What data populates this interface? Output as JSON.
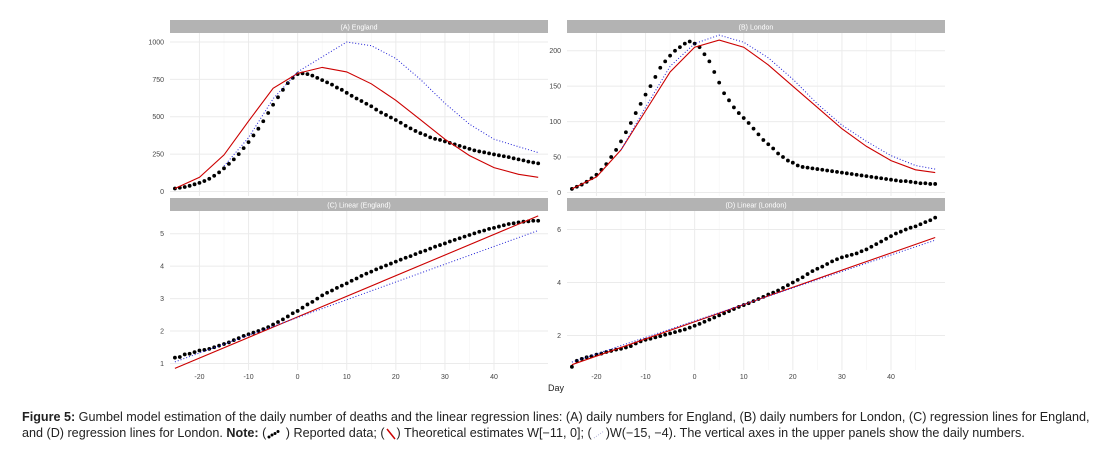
{
  "caption": {
    "fig_label": "Figure 5:",
    "text1": " Gumbel model estimation of the daily number of deaths and the linear regression lines: (A) daily numbers for England, (B) daily numbers  for London, (C) regression lines for England, and (D) regression lines for London. ",
    "note_label": "Note:",
    "t_open1": " (",
    "t_reported": " ) Reported data; (",
    "t_theoretical": ") Theoretical estimates W[−11, 0]; (",
    "t_w2": ")W(−15, −4). The vertical axes in the upper panels show the daily numbers."
  },
  "colors": {
    "points": "#000000",
    "fit_line": "#cc0000",
    "dotted_line": "#1f1fd6",
    "strip": "#b3b3b3"
  },
  "chart_data": [
    {
      "type": "scatter",
      "panel": "A",
      "title": "(A) England",
      "xlabel": "",
      "ylabel": "",
      "xlim": [
        -26,
        51
      ],
      "ylim": [
        -30,
        1060
      ],
      "yticks": [
        0,
        250,
        500,
        750,
        1000
      ],
      "xticks": [],
      "series": [
        {
          "kind": "points",
          "x": [
            -25,
            -24,
            -23,
            -22,
            -21,
            -20,
            -19,
            -18,
            -17,
            -16,
            -15,
            -14,
            -13,
            -12,
            -11,
            -10,
            -9,
            -8,
            -7,
            -6,
            -5,
            -4,
            -3,
            -2,
            -1,
            0,
            1,
            2,
            3,
            4,
            5,
            6,
            7,
            8,
            9,
            10,
            11,
            12,
            13,
            14,
            15,
            16,
            17,
            18,
            19,
            20,
            21,
            22,
            23,
            24,
            25,
            26,
            27,
            28,
            29,
            30,
            31,
            32,
            33,
            34,
            35,
            36,
            37,
            38,
            39,
            40,
            41,
            42,
            43,
            44,
            45,
            46,
            47,
            48,
            49
          ],
          "y": [
            20,
            25,
            30,
            38,
            48,
            58,
            70,
            85,
            105,
            128,
            155,
            185,
            215,
            250,
            290,
            330,
            375,
            420,
            470,
            525,
            580,
            630,
            680,
            725,
            760,
            785,
            790,
            785,
            775,
            760,
            745,
            730,
            715,
            695,
            680,
            660,
            640,
            622,
            605,
            587,
            570,
            548,
            528,
            512,
            495,
            478,
            460,
            440,
            422,
            405,
            390,
            378,
            362,
            352,
            345,
            335,
            325,
            315,
            305,
            295,
            285,
            275,
            268,
            262,
            255,
            248,
            242,
            236,
            230,
            222,
            215,
            208,
            200,
            194,
            188
          ]
        },
        {
          "kind": "line",
          "x": [
            -25,
            -20,
            -15,
            -10,
            -5,
            0,
            5,
            10,
            15,
            20,
            25,
            30,
            35,
            40,
            45,
            49
          ],
          "y": [
            20,
            95,
            245,
            470,
            690,
            790,
            830,
            800,
            720,
            610,
            480,
            350,
            240,
            160,
            115,
            95
          ]
        },
        {
          "kind": "dotted",
          "x": [
            -15,
            -10,
            -5,
            0,
            5,
            10,
            15,
            20,
            25,
            30,
            35,
            40,
            45,
            49
          ],
          "y": [
            170,
            360,
            620,
            800,
            900,
            1000,
            975,
            890,
            750,
            590,
            450,
            350,
            300,
            260
          ]
        }
      ]
    },
    {
      "type": "scatter",
      "panel": "B",
      "title": "(B) London",
      "xlabel": "",
      "ylabel": "",
      "xlim": [
        -26,
        51
      ],
      "ylim": [
        -5,
        225
      ],
      "yticks": [
        0,
        50,
        100,
        150,
        200
      ],
      "xticks": [],
      "series": [
        {
          "kind": "points",
          "x": [
            -25,
            -24,
            -23,
            -22,
            -21,
            -20,
            -19,
            -18,
            -17,
            -16,
            -15,
            -14,
            -13,
            -12,
            -11,
            -10,
            -9,
            -8,
            -7,
            -6,
            -5,
            -4,
            -3,
            -2,
            -1,
            0,
            1,
            2,
            3,
            4,
            5,
            6,
            7,
            8,
            9,
            10,
            11,
            12,
            13,
            14,
            15,
            16,
            17,
            18,
            19,
            20,
            21,
            22,
            23,
            24,
            25,
            26,
            27,
            28,
            29,
            30,
            31,
            32,
            33,
            34,
            35,
            36,
            37,
            38,
            39,
            40,
            41,
            42,
            43,
            44,
            45,
            46,
            47,
            48,
            49
          ],
          "y": [
            5,
            8,
            11,
            15,
            20,
            25,
            32,
            40,
            50,
            60,
            72,
            85,
            98,
            112,
            125,
            138,
            150,
            163,
            176,
            185,
            193,
            200,
            205,
            210,
            213,
            210,
            205,
            195,
            185,
            170,
            155,
            140,
            130,
            120,
            112,
            105,
            98,
            90,
            82,
            74,
            68,
            62,
            55,
            50,
            45,
            42,
            38,
            36,
            35,
            34,
            33,
            32,
            31,
            30,
            29,
            28,
            27,
            26,
            25,
            24,
            23,
            22,
            21,
            20,
            19,
            18,
            17,
            16,
            16,
            15,
            14,
            13,
            13,
            12,
            12
          ]
        },
        {
          "kind": "line",
          "x": [
            -25,
            -20,
            -15,
            -10,
            -5,
            0,
            5,
            10,
            15,
            20,
            25,
            30,
            35,
            40,
            45,
            49
          ],
          "y": [
            5,
            22,
            60,
            115,
            170,
            205,
            215,
            205,
            180,
            150,
            120,
            90,
            65,
            45,
            32,
            28
          ]
        },
        {
          "kind": "dotted",
          "x": [
            -15,
            -10,
            -5,
            0,
            5,
            10,
            15,
            20,
            25,
            30,
            35,
            40,
            45,
            49
          ],
          "y": [
            60,
            120,
            178,
            210,
            222,
            212,
            190,
            160,
            125,
            95,
            72,
            52,
            38,
            33
          ]
        }
      ]
    },
    {
      "type": "scatter",
      "panel": "C",
      "title": "(C) Linear (England)",
      "xlabel": "",
      "ylabel": "",
      "xlim": [
        -26,
        51
      ],
      "ylim": [
        0.8,
        5.7
      ],
      "yticks": [
        1,
        2,
        3,
        4,
        5
      ],
      "xticks": [
        -20,
        -10,
        0,
        10,
        20,
        30,
        40
      ],
      "series": [
        {
          "kind": "points",
          "x": [
            -25,
            -24,
            -23,
            -22,
            -21,
            -20,
            -19,
            -18,
            -17,
            -16,
            -15,
            -14,
            -13,
            -12,
            -11,
            -10,
            -9,
            -8,
            -7,
            -6,
            -5,
            -4,
            -3,
            -2,
            -1,
            0,
            1,
            2,
            3,
            4,
            5,
            6,
            7,
            8,
            9,
            10,
            11,
            12,
            13,
            14,
            15,
            16,
            17,
            18,
            19,
            20,
            21,
            22,
            23,
            24,
            25,
            26,
            27,
            28,
            29,
            30,
            31,
            32,
            33,
            34,
            35,
            36,
            37,
            38,
            39,
            40,
            41,
            42,
            43,
            44,
            45,
            46,
            47,
            48,
            49
          ],
          "y": [
            1.18,
            1.2,
            1.28,
            1.3,
            1.35,
            1.4,
            1.42,
            1.45,
            1.5,
            1.55,
            1.6,
            1.65,
            1.72,
            1.78,
            1.85,
            1.9,
            1.95,
            2.0,
            2.06,
            2.12,
            2.2,
            2.28,
            2.36,
            2.45,
            2.55,
            2.62,
            2.72,
            2.82,
            2.9,
            3.0,
            3.1,
            3.18,
            3.25,
            3.33,
            3.4,
            3.47,
            3.55,
            3.62,
            3.7,
            3.77,
            3.83,
            3.9,
            3.96,
            4.02,
            4.08,
            4.14,
            4.2,
            4.26,
            4.31,
            4.37,
            4.43,
            4.48,
            4.54,
            4.6,
            4.65,
            4.7,
            4.76,
            4.81,
            4.86,
            4.91,
            4.96,
            5.01,
            5.06,
            5.1,
            5.15,
            5.18,
            5.22,
            5.26,
            5.3,
            5.32,
            5.35,
            5.37,
            5.38,
            5.4,
            5.4
          ]
        },
        {
          "kind": "line",
          "x": [
            -25,
            49
          ],
          "y": [
            0.85,
            5.55
          ]
        },
        {
          "kind": "dotted",
          "x": [
            -25,
            49
          ],
          "y": [
            1.05,
            5.1
          ]
        }
      ]
    },
    {
      "type": "scatter",
      "panel": "D",
      "title": "(D) Linear (London)",
      "xlabel": "Day",
      "ylabel": "",
      "xlim": [
        -26,
        51
      ],
      "ylim": [
        0.7,
        6.7
      ],
      "yticks": [
        2,
        4,
        6
      ],
      "xticks": [
        -20,
        -10,
        0,
        10,
        20,
        30,
        40
      ],
      "series": [
        {
          "kind": "points",
          "x": [
            -25,
            -24,
            -23,
            -22,
            -21,
            -20,
            -19,
            -18,
            -17,
            -16,
            -15,
            -14,
            -13,
            -12,
            -11,
            -10,
            -9,
            -8,
            -7,
            -6,
            -5,
            -4,
            -3,
            -2,
            -1,
            0,
            1,
            2,
            3,
            4,
            5,
            6,
            7,
            8,
            9,
            10,
            11,
            12,
            13,
            14,
            15,
            16,
            17,
            18,
            19,
            20,
            21,
            22,
            23,
            24,
            25,
            26,
            27,
            28,
            29,
            30,
            31,
            32,
            33,
            34,
            35,
            36,
            37,
            38,
            39,
            40,
            41,
            42,
            43,
            44,
            45,
            46,
            47,
            48,
            49
          ],
          "y": [
            0.82,
            1.05,
            1.12,
            1.18,
            1.22,
            1.28,
            1.32,
            1.38,
            1.42,
            1.47,
            1.5,
            1.55,
            1.6,
            1.7,
            1.78,
            1.84,
            1.88,
            1.93,
            1.98,
            2.03,
            2.08,
            2.13,
            2.18,
            2.23,
            2.3,
            2.37,
            2.44,
            2.52,
            2.6,
            2.68,
            2.76,
            2.84,
            2.92,
            3.0,
            3.08,
            3.15,
            3.22,
            3.3,
            3.38,
            3.46,
            3.55,
            3.62,
            3.7,
            3.8,
            3.9,
            4.0,
            4.1,
            4.2,
            4.32,
            4.43,
            4.52,
            4.6,
            4.7,
            4.8,
            4.88,
            4.95,
            5.0,
            5.05,
            5.1,
            5.18,
            5.25,
            5.35,
            5.45,
            5.55,
            5.65,
            5.75,
            5.85,
            5.92,
            6.0,
            6.07,
            6.12,
            6.2,
            6.28,
            6.35,
            6.45
          ]
        },
        {
          "kind": "line",
          "x": [
            -25,
            49
          ],
          "y": [
            0.9,
            5.7
          ]
        },
        {
          "kind": "dotted",
          "x": [
            -25,
            49
          ],
          "y": [
            1.0,
            5.6
          ]
        }
      ]
    }
  ]
}
